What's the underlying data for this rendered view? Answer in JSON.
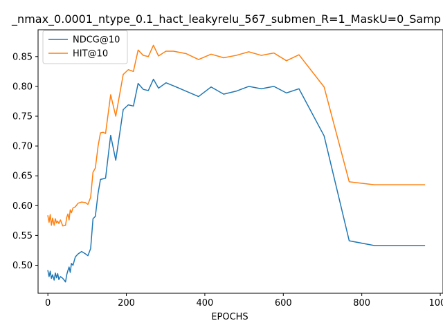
{
  "chart_data": {
    "type": "line",
    "title": "_nmax_0.0001_ntype_0.1_hact_leakyrelu_567_submen_R=1_MaskU=0_Samp",
    "xlabel": "EPOCHS",
    "ylabel": "",
    "xlim": [
      -25,
      1007
    ],
    "ylim": [
      0.453,
      0.895
    ],
    "xticks": [
      0,
      200,
      400,
      600,
      800,
      1000
    ],
    "yticks": [
      0.5,
      0.55,
      0.6,
      0.65,
      0.7,
      0.75,
      0.8,
      0.85
    ],
    "grid": false,
    "legend_position": "top-left",
    "series": [
      {
        "name": "NDCG@10",
        "color": "#1f77b4",
        "x": [
          0,
          3,
          6,
          9,
          12,
          16,
          19,
          22,
          25,
          28,
          32,
          38,
          45,
          48,
          51,
          54,
          57,
          60,
          64,
          70,
          77,
          86,
          96,
          102,
          109,
          115,
          121,
          128,
          134,
          141,
          147,
          160,
          173,
          192,
          205,
          218,
          230,
          243,
          256,
          269,
          282,
          301,
          320,
          352,
          384,
          416,
          448,
          480,
          512,
          544,
          576,
          608,
          640,
          704,
          768,
          832,
          896,
          960
        ],
        "y": [
          0.491,
          0.481,
          0.49,
          0.478,
          0.484,
          0.475,
          0.487,
          0.479,
          0.486,
          0.476,
          0.481,
          0.478,
          0.472,
          0.484,
          0.491,
          0.497,
          0.488,
          0.503,
          0.5,
          0.514,
          0.519,
          0.523,
          0.519,
          0.516,
          0.528,
          0.578,
          0.582,
          0.621,
          0.644,
          0.645,
          0.646,
          0.718,
          0.676,
          0.761,
          0.769,
          0.767,
          0.805,
          0.795,
          0.793,
          0.812,
          0.797,
          0.806,
          0.801,
          0.792,
          0.783,
          0.799,
          0.787,
          0.792,
          0.8,
          0.796,
          0.8,
          0.789,
          0.796,
          0.717,
          0.541,
          0.533,
          0.533,
          0.533
        ]
      },
      {
        "name": "HIT@10",
        "color": "#ff7f0e",
        "x": [
          0,
          3,
          6,
          9,
          12,
          16,
          19,
          22,
          25,
          28,
          32,
          38,
          45,
          48,
          51,
          54,
          57,
          60,
          64,
          70,
          77,
          86,
          96,
          102,
          109,
          115,
          121,
          128,
          134,
          141,
          147,
          160,
          173,
          192,
          205,
          218,
          230,
          243,
          256,
          269,
          282,
          301,
          320,
          352,
          384,
          416,
          448,
          480,
          512,
          544,
          576,
          608,
          640,
          704,
          768,
          832,
          896,
          960
        ],
        "y": [
          0.583,
          0.572,
          0.585,
          0.567,
          0.579,
          0.567,
          0.578,
          0.571,
          0.574,
          0.57,
          0.576,
          0.566,
          0.567,
          0.58,
          0.586,
          0.576,
          0.593,
          0.588,
          0.596,
          0.598,
          0.604,
          0.606,
          0.605,
          0.602,
          0.614,
          0.656,
          0.663,
          0.7,
          0.722,
          0.723,
          0.721,
          0.786,
          0.75,
          0.82,
          0.828,
          0.825,
          0.861,
          0.852,
          0.85,
          0.869,
          0.851,
          0.859,
          0.859,
          0.855,
          0.845,
          0.854,
          0.848,
          0.852,
          0.858,
          0.852,
          0.856,
          0.843,
          0.853,
          0.799,
          0.64,
          0.635,
          0.635,
          0.635
        ]
      }
    ]
  }
}
